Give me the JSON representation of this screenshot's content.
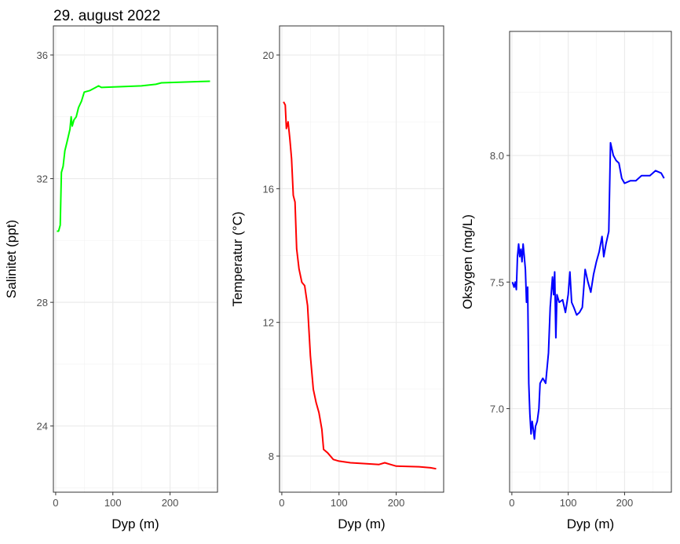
{
  "title": "29. august 2022",
  "chart_data": [
    {
      "type": "line",
      "xlabel": "Dyp (m)",
      "ylabel": "Salinitet (ppt)",
      "color": "#00ff00",
      "xlim": [
        -4,
        283
      ],
      "ylim": [
        21.86,
        36.94
      ],
      "xticks": [
        0,
        100,
        200
      ],
      "yticks": [
        24,
        28,
        32,
        36
      ],
      "grid": true,
      "x": [
        2,
        5,
        8,
        10,
        13,
        16,
        20,
        25,
        27,
        29,
        32,
        36,
        40,
        45,
        50,
        60,
        70,
        75,
        80,
        150,
        175,
        185,
        270
      ],
      "y": [
        30.3,
        30.3,
        30.5,
        32.2,
        32.4,
        32.9,
        33.2,
        33.6,
        34.0,
        33.7,
        33.9,
        34.0,
        34.3,
        34.5,
        34.8,
        34.85,
        34.95,
        35.0,
        34.95,
        35.0,
        35.05,
        35.1,
        35.15
      ]
    },
    {
      "type": "line",
      "xlabel": "Dyp (m)",
      "ylabel": "Temperatur (°C)",
      "color": "#ff0000",
      "xlim": [
        -4,
        283
      ],
      "ylim": [
        6.92,
        20.87
      ],
      "xticks": [
        0,
        100,
        200
      ],
      "yticks": [
        8,
        12,
        16,
        20
      ],
      "grid": true,
      "x": [
        3,
        6,
        8,
        11,
        14,
        17,
        20,
        23,
        26,
        30,
        35,
        40,
        45,
        50,
        55,
        60,
        65,
        70,
        73,
        80,
        90,
        100,
        120,
        140,
        170,
        180,
        190,
        200,
        240,
        260,
        270
      ],
      "y": [
        18.6,
        18.5,
        17.8,
        18.0,
        17.5,
        16.9,
        15.8,
        15.6,
        14.2,
        13.6,
        13.2,
        13.1,
        12.5,
        11.0,
        10.0,
        9.6,
        9.3,
        8.8,
        8.2,
        8.1,
        7.9,
        7.85,
        7.8,
        7.78,
        7.75,
        7.8,
        7.75,
        7.7,
        7.68,
        7.65,
        7.62
      ]
    },
    {
      "type": "line",
      "xlabel": "Dyp (m)",
      "ylabel": "Oksygen (mg/L)",
      "color": "#0000ff",
      "xlim": [
        -4,
        283
      ],
      "ylim": [
        6.67,
        8.49
      ],
      "xticks": [
        0,
        100,
        200
      ],
      "yticks": [
        7.0,
        7.5,
        8.0
      ],
      "ytick_labels": [
        "7.0",
        "7.5",
        "8.0"
      ],
      "grid": true,
      "x": [
        1,
        4,
        6,
        8,
        10,
        12,
        14,
        16,
        18,
        20,
        22,
        24,
        26,
        28,
        30,
        32,
        34,
        36,
        38,
        40,
        42,
        45,
        48,
        50,
        55,
        60,
        65,
        68,
        72,
        74,
        76,
        78,
        80,
        84,
        90,
        95,
        100,
        103,
        106,
        110,
        115,
        120,
        125,
        130,
        135,
        140,
        145,
        150,
        155,
        160,
        163,
        167,
        172,
        175,
        180,
        185,
        190,
        195,
        200,
        210,
        220,
        230,
        245,
        255,
        265,
        270
      ],
      "y": [
        7.5,
        7.48,
        7.5,
        7.47,
        7.6,
        7.65,
        7.6,
        7.63,
        7.58,
        7.65,
        7.6,
        7.55,
        7.42,
        7.48,
        7.1,
        6.98,
        6.9,
        6.95,
        6.92,
        6.88,
        6.93,
        6.95,
        7.0,
        7.1,
        7.12,
        7.1,
        7.22,
        7.4,
        7.52,
        7.45,
        7.54,
        7.28,
        7.45,
        7.42,
        7.43,
        7.38,
        7.45,
        7.54,
        7.42,
        7.4,
        7.37,
        7.38,
        7.4,
        7.55,
        7.5,
        7.46,
        7.53,
        7.58,
        7.62,
        7.68,
        7.6,
        7.65,
        7.7,
        8.05,
        8.0,
        7.98,
        7.97,
        7.91,
        7.89,
        7.9,
        7.9,
        7.92,
        7.92,
        7.94,
        7.93,
        7.91
      ]
    }
  ]
}
